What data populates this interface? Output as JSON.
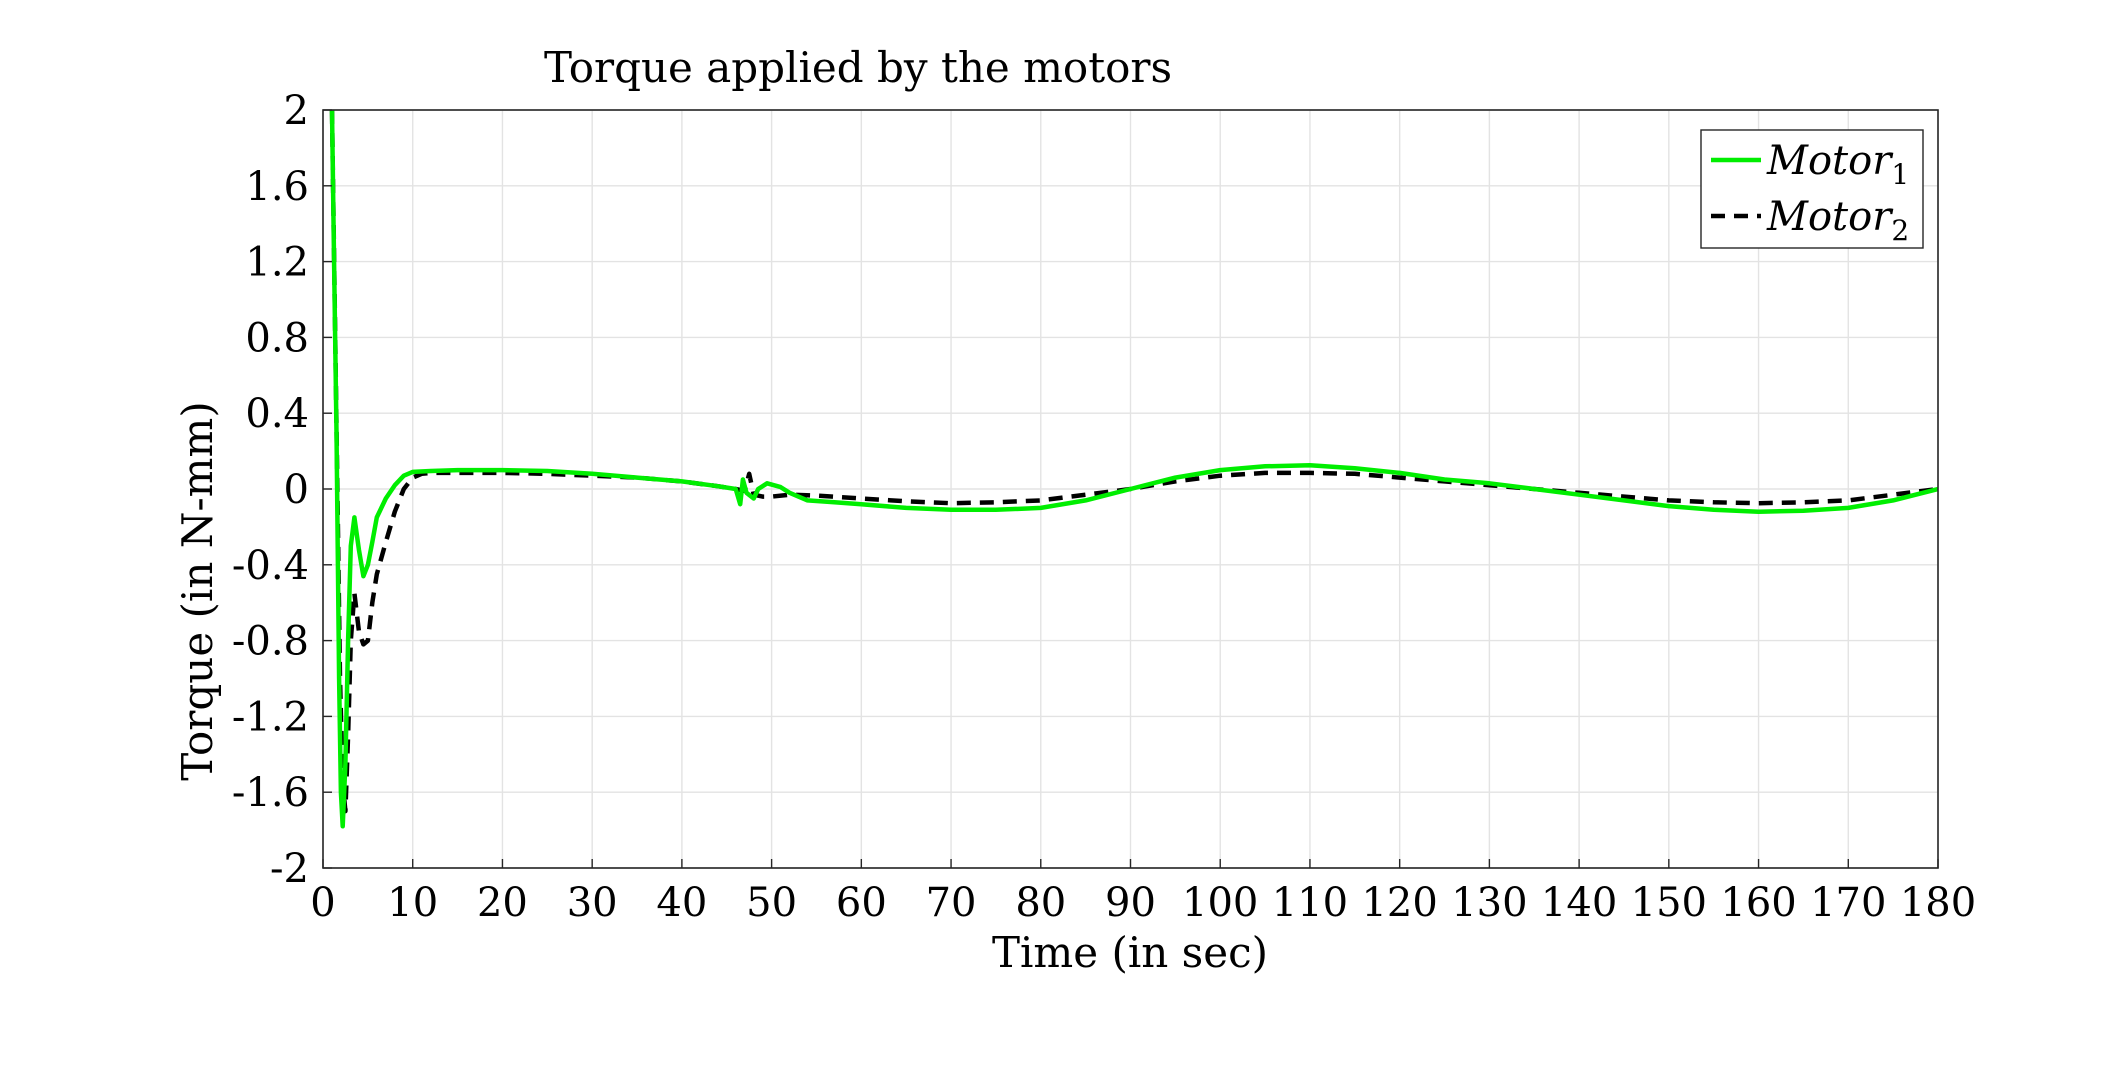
{
  "chart_data": {
    "type": "line",
    "title": "Torque applied by the motors",
    "xlabel": "Time (in sec)",
    "ylabel": "Torque (in N-mm)",
    "xlim": [
      0,
      180
    ],
    "ylim": [
      -2,
      2
    ],
    "xticks": [
      0,
      10,
      20,
      30,
      40,
      50,
      60,
      70,
      80,
      90,
      100,
      110,
      120,
      130,
      140,
      150,
      160,
      170,
      180
    ],
    "yticks": [
      2,
      1.6,
      1.2,
      0.8,
      0.4,
      0,
      -0.4,
      -0.8,
      -1.2,
      -1.6,
      -2
    ],
    "grid": true,
    "legend_position": "top-right",
    "series": [
      {
        "name": "Motor",
        "subscript": "1",
        "color": "#00ee00",
        "style": "solid",
        "points": [
          [
            1.0,
            2.0
          ],
          [
            1.2,
            1.3
          ],
          [
            1.5,
            0.3
          ],
          [
            1.8,
            -1.0
          ],
          [
            2.0,
            -1.6
          ],
          [
            2.2,
            -1.78
          ],
          [
            2.5,
            -1.45
          ],
          [
            2.8,
            -0.8
          ],
          [
            3.1,
            -0.3
          ],
          [
            3.5,
            -0.15
          ],
          [
            4.0,
            -0.32
          ],
          [
            4.5,
            -0.46
          ],
          [
            5.0,
            -0.4
          ],
          [
            5.5,
            -0.28
          ],
          [
            6.0,
            -0.15
          ],
          [
            7.0,
            -0.05
          ],
          [
            8.0,
            0.02
          ],
          [
            9.0,
            0.07
          ],
          [
            10.0,
            0.09
          ],
          [
            12.0,
            0.095
          ],
          [
            15.0,
            0.1
          ],
          [
            20.0,
            0.1
          ],
          [
            25.0,
            0.095
          ],
          [
            30.0,
            0.08
          ],
          [
            35.0,
            0.06
          ],
          [
            40.0,
            0.04
          ],
          [
            44.0,
            0.015
          ],
          [
            46.0,
            0.0
          ],
          [
            46.5,
            -0.08
          ],
          [
            46.8,
            0.05
          ],
          [
            47.2,
            -0.02
          ],
          [
            48.0,
            -0.05
          ],
          [
            48.5,
            0.0
          ],
          [
            49.5,
            0.03
          ],
          [
            51.0,
            0.01
          ],
          [
            52.0,
            -0.02
          ],
          [
            54.0,
            -0.06
          ],
          [
            57.0,
            -0.07
          ],
          [
            60.0,
            -0.08
          ],
          [
            65.0,
            -0.1
          ],
          [
            70.0,
            -0.11
          ],
          [
            75.0,
            -0.11
          ],
          [
            80.0,
            -0.1
          ],
          [
            85.0,
            -0.06
          ],
          [
            90.0,
            0.0
          ],
          [
            95.0,
            0.06
          ],
          [
            100.0,
            0.1
          ],
          [
            105.0,
            0.12
          ],
          [
            110.0,
            0.125
          ],
          [
            115.0,
            0.11
          ],
          [
            120.0,
            0.085
          ],
          [
            125.0,
            0.05
          ],
          [
            130.0,
            0.03
          ],
          [
            135.0,
            0.0
          ],
          [
            140.0,
            -0.03
          ],
          [
            145.0,
            -0.06
          ],
          [
            150.0,
            -0.09
          ],
          [
            155.0,
            -0.11
          ],
          [
            160.0,
            -0.12
          ],
          [
            165.0,
            -0.115
          ],
          [
            170.0,
            -0.1
          ],
          [
            175.0,
            -0.06
          ],
          [
            180.0,
            0.0
          ]
        ]
      },
      {
        "name": "Motor",
        "subscript": "2",
        "color": "#000000",
        "style": "dashed",
        "points": [
          [
            1.0,
            2.0
          ],
          [
            1.3,
            1.0
          ],
          [
            1.6,
            0.0
          ],
          [
            1.9,
            -1.0
          ],
          [
            2.2,
            -1.55
          ],
          [
            2.5,
            -1.7
          ],
          [
            2.8,
            -1.3
          ],
          [
            3.1,
            -0.8
          ],
          [
            3.5,
            -0.55
          ],
          [
            4.0,
            -0.75
          ],
          [
            4.5,
            -0.82
          ],
          [
            5.0,
            -0.8
          ],
          [
            5.5,
            -0.6
          ],
          [
            6.0,
            -0.45
          ],
          [
            7.0,
            -0.28
          ],
          [
            8.0,
            -0.12
          ],
          [
            9.0,
            0.0
          ],
          [
            10.0,
            0.06
          ],
          [
            11.0,
            0.08
          ],
          [
            12.0,
            0.085
          ],
          [
            15.0,
            0.085
          ],
          [
            20.0,
            0.085
          ],
          [
            25.0,
            0.08
          ],
          [
            30.0,
            0.07
          ],
          [
            35.0,
            0.06
          ],
          [
            40.0,
            0.04
          ],
          [
            44.0,
            0.015
          ],
          [
            46.0,
            0.0
          ],
          [
            47.0,
            -0.01
          ],
          [
            47.5,
            0.08
          ],
          [
            48.0,
            -0.03
          ],
          [
            49.0,
            -0.04
          ],
          [
            50.0,
            -0.04
          ],
          [
            52.0,
            -0.03
          ],
          [
            55.0,
            -0.035
          ],
          [
            60.0,
            -0.05
          ],
          [
            65.0,
            -0.065
          ],
          [
            70.0,
            -0.075
          ],
          [
            75.0,
            -0.07
          ],
          [
            80.0,
            -0.06
          ],
          [
            85.0,
            -0.03
          ],
          [
            90.0,
            0.0
          ],
          [
            95.0,
            0.04
          ],
          [
            100.0,
            0.07
          ],
          [
            105.0,
            0.085
          ],
          [
            110.0,
            0.085
          ],
          [
            115.0,
            0.08
          ],
          [
            120.0,
            0.06
          ],
          [
            125.0,
            0.04
          ],
          [
            130.0,
            0.02
          ],
          [
            135.0,
            0.0
          ],
          [
            140.0,
            -0.02
          ],
          [
            145.0,
            -0.04
          ],
          [
            150.0,
            -0.06
          ],
          [
            155.0,
            -0.07
          ],
          [
            160.0,
            -0.075
          ],
          [
            165.0,
            -0.07
          ],
          [
            170.0,
            -0.06
          ],
          [
            175.0,
            -0.03
          ],
          [
            180.0,
            0.0
          ]
        ]
      }
    ]
  }
}
